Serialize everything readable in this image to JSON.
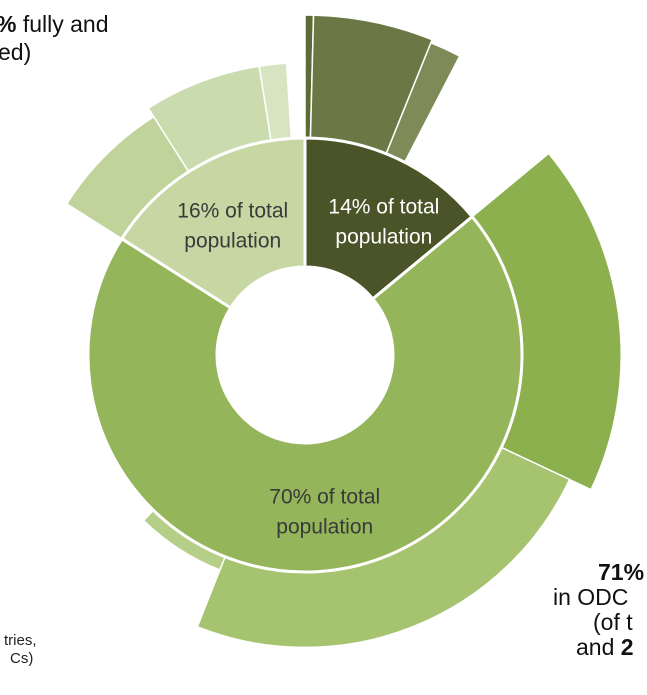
{
  "chart_data": {
    "type": "pie",
    "subtype": "sunburst",
    "inner_ring": [
      {
        "label_line1": "14% of total",
        "label_line2": "population",
        "value": 14,
        "color": "#4a5428",
        "text_color": "#ffffff"
      },
      {
        "label_line1": "70% of total",
        "label_line2": "population",
        "value": 70,
        "color": "#95b55a",
        "text_color": "#3a3a3a"
      },
      {
        "label_line1": "16% of total",
        "label_line2": "population",
        "value": 16,
        "color": "#c7d7a3",
        "text_color": "#3a3a3a"
      }
    ],
    "outer_ring": [
      {
        "parent": 0,
        "start_pct": 0.0,
        "end_pct": 0.4,
        "radius_scale": 1.0,
        "color": "#5e6b36"
      },
      {
        "parent": 0,
        "start_pct": 0.4,
        "end_pct": 6.1,
        "radius_scale": 1.0,
        "color": "#6b7744"
      },
      {
        "parent": 0,
        "start_pct": 6.1,
        "end_pct": 7.6,
        "radius_scale": 0.99,
        "color": "#7e8a58"
      },
      {
        "parent": 1,
        "start_pct": 14.0,
        "end_pct": 32.0,
        "radius_scale": 0.93,
        "color": "#8db04f"
      },
      {
        "parent": 1,
        "start_pct": 32.0,
        "end_pct": 56.0,
        "radius_scale": 0.86,
        "color": "#a6c46f"
      },
      {
        "parent": 1,
        "start_pct": 56.0,
        "end_pct": 62.3,
        "radius_scale": 0.68,
        "color": "#b6cf88"
      },
      {
        "parent": 2,
        "start_pct": 84.0,
        "end_pct": 91.0,
        "radius_scale": 0.83,
        "color": "#bfd39a"
      },
      {
        "parent": 2,
        "start_pct": 91.0,
        "end_pct": 97.5,
        "radius_scale": 0.86,
        "color": "#cadbae"
      },
      {
        "parent": 2,
        "start_pct": 97.5,
        "end_pct": 99.0,
        "radius_scale": 0.86,
        "color": "#d7e4c1"
      }
    ]
  },
  "annotations": {
    "top_left_bold": "%",
    "top_left_line1_rest": " fully and",
    "top_left_line2": "ed)",
    "right_bold": "71%",
    "right_line2": "in ODC",
    "right_line3": "(of t",
    "right_line4_prefix": "and ",
    "right_line4_bold": "2",
    "bottom_left_line1": "tries,",
    "bottom_left_line2": "Cs)"
  }
}
